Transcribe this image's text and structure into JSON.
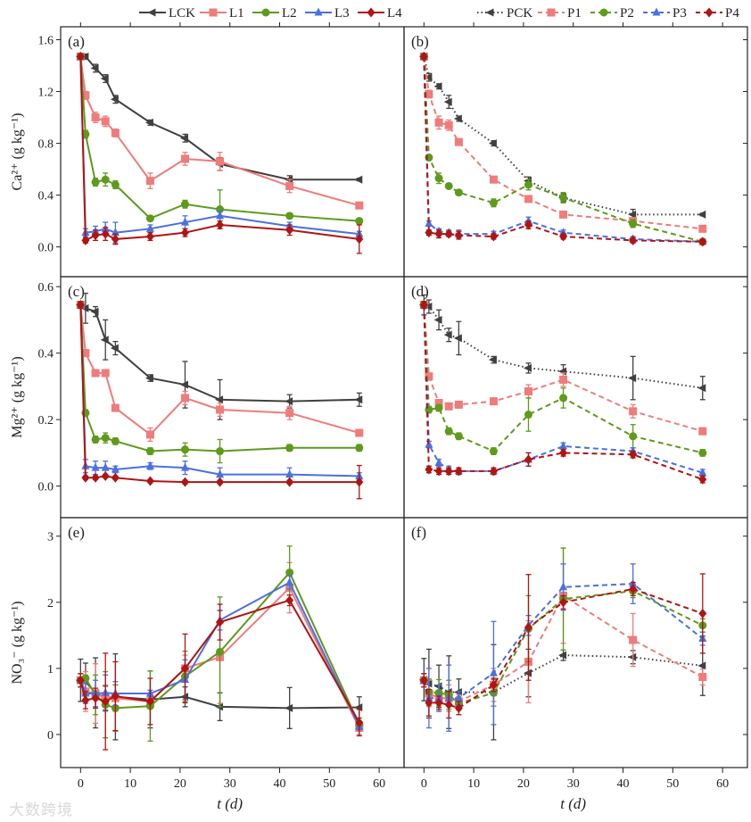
{
  "watermark": "大数跨境",
  "legend_left": [
    "LCK",
    "L1",
    "L2",
    "L3",
    "L4"
  ],
  "legend_right": [
    "PCK",
    "P1",
    "P2",
    "P3",
    "P4"
  ],
  "colors": {
    "CK": "#404040",
    "1": "#f07b7b",
    "2": "#5e9a1c",
    "3": "#4b70e0",
    "4": "#b01414"
  },
  "chart_data": {
    "type": "line",
    "x": [
      0,
      1,
      3,
      5,
      7,
      14,
      21,
      28,
      42,
      56
    ],
    "xlabel": "t (d)",
    "xlim": [
      -4,
      65
    ],
    "xticks": [
      0,
      10,
      20,
      30,
      40,
      50,
      60
    ],
    "rows": [
      {
        "ylabel": "Ca²⁺ (g kg⁻¹)",
        "ylim": [
          -0.23,
          1.7
        ],
        "yticks": [
          0.0,
          0.4,
          0.8,
          1.2,
          1.6
        ],
        "ytick_labels": [
          "0.0",
          "0.4",
          "0.8",
          "1.2",
          "1.6"
        ]
      },
      {
        "ylabel": "Mg²⁺ (g kg⁻¹)",
        "ylim": [
          -0.095,
          0.63
        ],
        "yticks": [
          0.0,
          0.2,
          0.4,
          0.6
        ],
        "ytick_labels": [
          "0.0",
          "0.2",
          "0.4",
          "0.6"
        ]
      },
      {
        "ylabel": "NO₃⁻ (g kg⁻¹)",
        "ylim": [
          -0.5,
          3.28
        ],
        "yticks": [
          0,
          1,
          2,
          3
        ],
        "ytick_labels": [
          "0",
          "1",
          "2",
          "3"
        ]
      }
    ],
    "panels": [
      {
        "label": "(a)",
        "row": 0,
        "col": 0,
        "style": "solid",
        "series": [
          {
            "name": "LCK",
            "marker": "ltri",
            "color": "CK",
            "values": [
              1.47,
              1.47,
              1.38,
              1.3,
              1.14,
              0.96,
              0.84,
              0.64,
              0.52,
              0.52
            ],
            "err": [
              0.02,
              0.02,
              0.03,
              0.03,
              0.03,
              0.02,
              0.03,
              0.05,
              0.03,
              0.01
            ]
          },
          {
            "name": "L1",
            "marker": "square",
            "color": "1",
            "values": [
              1.47,
              1.17,
              1.0,
              0.97,
              0.88,
              0.51,
              0.68,
              0.66,
              0.47,
              0.32
            ],
            "err": [
              0.02,
              0.03,
              0.04,
              0.04,
              0.03,
              0.06,
              0.05,
              0.07,
              0.05,
              0.02
            ]
          },
          {
            "name": "L2",
            "marker": "circle",
            "color": "2",
            "values": [
              1.47,
              0.87,
              0.5,
              0.52,
              0.48,
              0.22,
              0.33,
              0.29,
              0.24,
              0.2
            ],
            "err": [
              0.02,
              0.03,
              0.03,
              0.05,
              0.03,
              0.02,
              0.03,
              0.15,
              0.02,
              0.02
            ]
          },
          {
            "name": "L3",
            "marker": "tri",
            "color": "3",
            "values": [
              1.47,
              0.11,
              0.12,
              0.14,
              0.11,
              0.14,
              0.19,
              0.24,
              0.16,
              0.1
            ],
            "err": [
              0.02,
              0.03,
              0.04,
              0.05,
              0.08,
              0.03,
              0.05,
              0.04,
              0.03,
              0.02
            ]
          },
          {
            "name": "L4",
            "marker": "diamond",
            "color": "4",
            "values": [
              1.47,
              0.05,
              0.09,
              0.1,
              0.06,
              0.08,
              0.11,
              0.17,
              0.13,
              0.06
            ],
            "err": [
              0.02,
              0.02,
              0.04,
              0.05,
              0.04,
              0.03,
              0.03,
              0.03,
              0.04,
              0.11
            ]
          }
        ]
      },
      {
        "label": "(b)",
        "row": 0,
        "col": 1,
        "style": "dashed",
        "series": [
          {
            "name": "PCK",
            "marker": "ltri",
            "color": "CK",
            "values": [
              1.47,
              1.31,
              1.24,
              1.12,
              0.99,
              0.8,
              0.51,
              0.38,
              0.25,
              0.25
            ],
            "err": [
              0.02,
              0.03,
              0.02,
              0.05,
              0.02,
              0.02,
              0.03,
              0.03,
              0.04,
              0.01
            ]
          },
          {
            "name": "P1",
            "marker": "square",
            "color": "1",
            "values": [
              1.47,
              1.18,
              0.96,
              0.94,
              0.81,
              0.52,
              0.37,
              0.25,
              0.2,
              0.14
            ],
            "err": [
              0.02,
              0.03,
              0.05,
              0.04,
              0.02,
              0.02,
              0.02,
              0.02,
              0.02,
              0.02
            ]
          },
          {
            "name": "P2",
            "marker": "circle",
            "color": "2",
            "values": [
              1.47,
              0.69,
              0.53,
              0.47,
              0.42,
              0.34,
              0.48,
              0.38,
              0.18,
              0.04
            ],
            "err": [
              0.02,
              0.02,
              0.04,
              0.02,
              0.02,
              0.03,
              0.04,
              0.04,
              0.03,
              0.02
            ]
          },
          {
            "name": "P3",
            "marker": "tri",
            "color": "3",
            "values": [
              1.47,
              0.18,
              0.12,
              0.11,
              0.1,
              0.1,
              0.2,
              0.11,
              0.06,
              0.04
            ],
            "err": [
              0.02,
              0.02,
              0.02,
              0.02,
              0.03,
              0.02,
              0.03,
              0.02,
              0.02,
              0.02
            ]
          },
          {
            "name": "P4",
            "marker": "diamond",
            "color": "4",
            "values": [
              1.47,
              0.11,
              0.1,
              0.1,
              0.09,
              0.08,
              0.17,
              0.08,
              0.05,
              0.04
            ],
            "err": [
              0.02,
              0.02,
              0.03,
              0.02,
              0.03,
              0.02,
              0.03,
              0.02,
              0.02,
              0.02
            ]
          }
        ]
      },
      {
        "label": "(c)",
        "row": 1,
        "col": 0,
        "style": "solid",
        "series": [
          {
            "name": "LCK",
            "marker": "ltri",
            "color": "CK",
            "values": [
              0.545,
              0.535,
              0.525,
              0.44,
              0.415,
              0.325,
              0.305,
              0.26,
              0.255,
              0.26
            ],
            "err": [
              0.01,
              0.045,
              0.015,
              0.06,
              0.02,
              0.01,
              0.07,
              0.06,
              0.02,
              0.02
            ]
          },
          {
            "name": "L1",
            "marker": "square",
            "color": "1",
            "values": [
              0.545,
              0.4,
              0.34,
              0.34,
              0.235,
              0.155,
              0.265,
              0.23,
              0.22,
              0.16
            ],
            "err": [
              0.01,
              0.01,
              0.01,
              0.01,
              0.01,
              0.02,
              0.02,
              0.02,
              0.02,
              0.01
            ]
          },
          {
            "name": "L2",
            "marker": "circle",
            "color": "2",
            "values": [
              0.545,
              0.22,
              0.14,
              0.145,
              0.135,
              0.105,
              0.11,
              0.105,
              0.115,
              0.115
            ],
            "err": [
              0.01,
              0.01,
              0.01,
              0.015,
              0.01,
              0.01,
              0.02,
              0.035,
              0.01,
              0.01
            ]
          },
          {
            "name": "L3",
            "marker": "tri",
            "color": "3",
            "values": [
              0.545,
              0.06,
              0.055,
              0.055,
              0.05,
              0.06,
              0.055,
              0.035,
              0.035,
              0.03
            ],
            "err": [
              0.01,
              0.02,
              0.02,
              0.02,
              0.01,
              0.01,
              0.02,
              0.02,
              0.02,
              0.01
            ]
          },
          {
            "name": "L4",
            "marker": "diamond",
            "color": "4",
            "values": [
              0.545,
              0.025,
              0.025,
              0.03,
              0.025,
              0.015,
              0.012,
              0.012,
              0.012,
              0.012
            ],
            "err": [
              0.01,
              0.005,
              0.005,
              0.005,
              0.005,
              0.005,
              0.005,
              0.005,
              0.005,
              0.05
            ]
          }
        ]
      },
      {
        "label": "(d)",
        "row": 1,
        "col": 1,
        "style": "dashed",
        "series": [
          {
            "name": "PCK",
            "marker": "ltri",
            "color": "CK",
            "values": [
              0.545,
              0.54,
              0.5,
              0.455,
              0.445,
              0.38,
              0.355,
              0.345,
              0.325,
              0.295
            ],
            "err": [
              0.03,
              0.02,
              0.03,
              0.02,
              0.05,
              0.01,
              0.015,
              0.02,
              0.065,
              0.035
            ]
          },
          {
            "name": "P1",
            "marker": "square",
            "color": "1",
            "values": [
              0.545,
              0.33,
              0.25,
              0.24,
              0.245,
              0.255,
              0.285,
              0.32,
              0.225,
              0.165
            ],
            "err": [
              0.01,
              0.01,
              0.01,
              0.01,
              0.01,
              0.01,
              0.02,
              0.02,
              0.02,
              0.01
            ]
          },
          {
            "name": "P2",
            "marker": "circle",
            "color": "2",
            "values": [
              0.545,
              0.23,
              0.235,
              0.165,
              0.15,
              0.105,
              0.215,
              0.265,
              0.15,
              0.1
            ],
            "err": [
              0.01,
              0.01,
              0.01,
              0.01,
              0.01,
              0.01,
              0.05,
              0.03,
              0.035,
              0.01
            ]
          },
          {
            "name": "P3",
            "marker": "tri",
            "color": "3",
            "values": [
              0.545,
              0.125,
              0.07,
              0.05,
              0.045,
              0.045,
              0.08,
              0.12,
              0.105,
              0.04
            ],
            "err": [
              0.01,
              0.01,
              0.01,
              0.01,
              0.01,
              0.01,
              0.02,
              0.01,
              0.01,
              0.01
            ]
          },
          {
            "name": "P4",
            "marker": "diamond",
            "color": "4",
            "values": [
              0.545,
              0.05,
              0.045,
              0.045,
              0.045,
              0.045,
              0.08,
              0.1,
              0.095,
              0.02
            ],
            "err": [
              0.01,
              0.01,
              0.01,
              0.01,
              0.01,
              0.01,
              0.02,
              0.01,
              0.01,
              0.01
            ]
          }
        ]
      },
      {
        "label": "(e)",
        "row": 2,
        "col": 0,
        "style": "solid",
        "series": [
          {
            "name": "LCK",
            "marker": "ltri",
            "color": "CK",
            "values": [
              0.82,
              0.8,
              0.63,
              0.55,
              0.57,
              0.53,
              0.57,
              0.42,
              0.4,
              0.41
            ],
            "err": [
              0.32,
              0.28,
              0.53,
              0.18,
              0.65,
              0.43,
              0.15,
              0.21,
              0.31,
              0.16
            ]
          },
          {
            "name": "L1",
            "marker": "square",
            "color": "1",
            "values": [
              0.82,
              0.65,
              0.62,
              0.55,
              0.55,
              0.5,
              1.0,
              1.17,
              2.22,
              0.1
            ],
            "err": [
              0.1,
              0.3,
              0.45,
              0.2,
              0.2,
              0.1,
              0.2,
              0.7,
              0.38,
              0.1
            ]
          },
          {
            "name": "L2",
            "marker": "circle",
            "color": "2",
            "values": [
              0.82,
              0.85,
              0.6,
              0.45,
              0.4,
              0.43,
              0.88,
              1.25,
              2.45,
              0.15
            ],
            "err": [
              0.1,
              0.05,
              0.3,
              0.5,
              0.35,
              0.53,
              0.38,
              0.83,
              0.4,
              0.05
            ]
          },
          {
            "name": "L3",
            "marker": "tri",
            "color": "3",
            "values": [
              0.82,
              0.62,
              0.62,
              0.63,
              0.62,
              0.62,
              0.83,
              1.73,
              2.3,
              0.12
            ],
            "err": [
              0.1,
              0.15,
              0.2,
              0.27,
              0.18,
              0.05,
              0.3,
              0.15,
              0.1,
              0.05
            ]
          },
          {
            "name": "L4",
            "marker": "diamond",
            "color": "4",
            "values": [
              0.82,
              0.52,
              0.55,
              0.5,
              0.58,
              0.5,
              1.0,
              1.7,
              2.03,
              0.18
            ],
            "err": [
              0.1,
              0.13,
              0.15,
              0.73,
              0.52,
              0.35,
              0.52,
              0.27,
              0.08,
              0.2
            ]
          }
        ]
      },
      {
        "label": "(f)",
        "row": 2,
        "col": 1,
        "style": "dashed",
        "series": [
          {
            "name": "PCK",
            "marker": "ltri",
            "color": "CK",
            "values": [
              0.83,
              0.77,
              0.73,
              0.64,
              0.64,
              0.64,
              0.93,
              1.2,
              1.17,
              1.04
            ],
            "err": [
              0.32,
              0.52,
              0.32,
              0.55,
              0.2,
              0.72,
              0.36,
              0.08,
              0.1,
              0.45
            ]
          },
          {
            "name": "P1",
            "marker": "square",
            "color": "1",
            "values": [
              0.82,
              0.62,
              0.55,
              0.55,
              0.5,
              0.75,
              1.1,
              2.1,
              1.43,
              0.87
            ],
            "err": [
              0.1,
              0.2,
              0.2,
              0.2,
              0.1,
              0.25,
              0.62,
              0.72,
              0.4,
              0.12
            ]
          },
          {
            "name": "P2",
            "marker": "circle",
            "color": "2",
            "values": [
              0.82,
              0.64,
              0.63,
              0.6,
              0.47,
              0.63,
              1.6,
              2.05,
              2.17,
              1.65
            ],
            "err": [
              0.1,
              0.2,
              0.2,
              0.22,
              0.1,
              0.2,
              0.5,
              0.77,
              0.1,
              0.1
            ]
          },
          {
            "name": "P3",
            "marker": "tri",
            "color": "3",
            "values": [
              0.82,
              0.55,
              0.55,
              0.55,
              0.55,
              0.93,
              1.65,
              2.23,
              2.28,
              1.45
            ],
            "err": [
              0.1,
              0.45,
              0.2,
              0.5,
              0.1,
              0.78,
              0.15,
              0.35,
              0.3,
              0.1
            ]
          },
          {
            "name": "P4",
            "marker": "diamond",
            "color": "4",
            "values": [
              0.82,
              0.48,
              0.48,
              0.45,
              0.4,
              0.75,
              1.62,
              2.0,
              2.2,
              1.83
            ],
            "err": [
              0.1,
              0.2,
              0.1,
              0.2,
              0.1,
              0.1,
              0.8,
              0.1,
              0.1,
              0.6
            ]
          }
        ]
      }
    ]
  }
}
